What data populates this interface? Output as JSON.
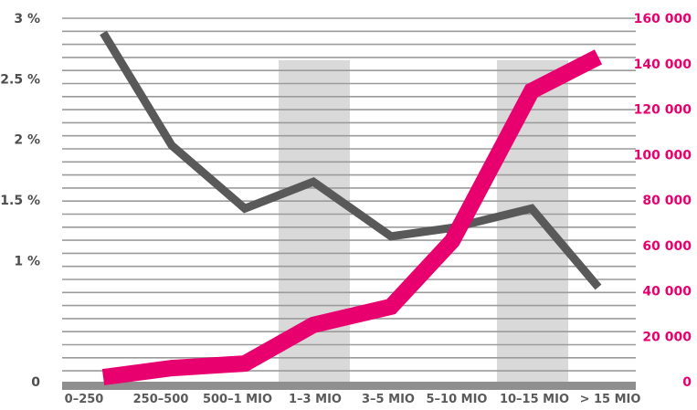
{
  "colors": {
    "background": "#ffffff",
    "gridline": "#9b9b9b",
    "highlight_band": "#d9d9d9",
    "baseline": "#8f8f8f",
    "percent_series": "#595959",
    "count_series": "#e8006f",
    "left_tick_text": "#4d4d4d",
    "right_tick_text": "#e8006f",
    "x_tick_text": "#5a5a5a"
  },
  "chart_data": {
    "type": "line",
    "title": "",
    "xlabel": "",
    "ylabel": "",
    "categories": [
      "0–250",
      "250–500",
      "500–1 MIO",
      "1–3 MIO",
      "3–5 MIO",
      "5–10 MIO",
      "10–15 MIO",
      "> 15 MIO"
    ],
    "highlighted_categories": [
      "1–3 MIO",
      "10–15 MIO"
    ],
    "y_left": {
      "ticks": [
        0,
        1,
        1.5,
        2,
        2.5,
        3
      ],
      "tick_labels": [
        "0",
        "1 %",
        "1.5 %",
        "2 %",
        "2.5 %",
        "3 %"
      ],
      "ylim": [
        0,
        3
      ]
    },
    "y_right": {
      "ticks": [
        0,
        20000,
        40000,
        60000,
        80000,
        100000,
        120000,
        140000,
        160000
      ],
      "tick_labels": [
        "0",
        "20 000",
        "40 000",
        "60 000",
        "80 000",
        "100 000",
        "120 000",
        "140 000",
        "160 000"
      ],
      "ylim": [
        0,
        160000
      ]
    },
    "grid": true,
    "series": [
      {
        "axis": "left",
        "values": [
          2.88,
          1.95,
          1.43,
          1.65,
          1.2,
          1.27,
          1.43,
          0.78
        ]
      },
      {
        "axis": "right",
        "values": [
          2000,
          6000,
          8000,
          25000,
          33000,
          62000,
          128000,
          143000
        ]
      }
    ]
  }
}
